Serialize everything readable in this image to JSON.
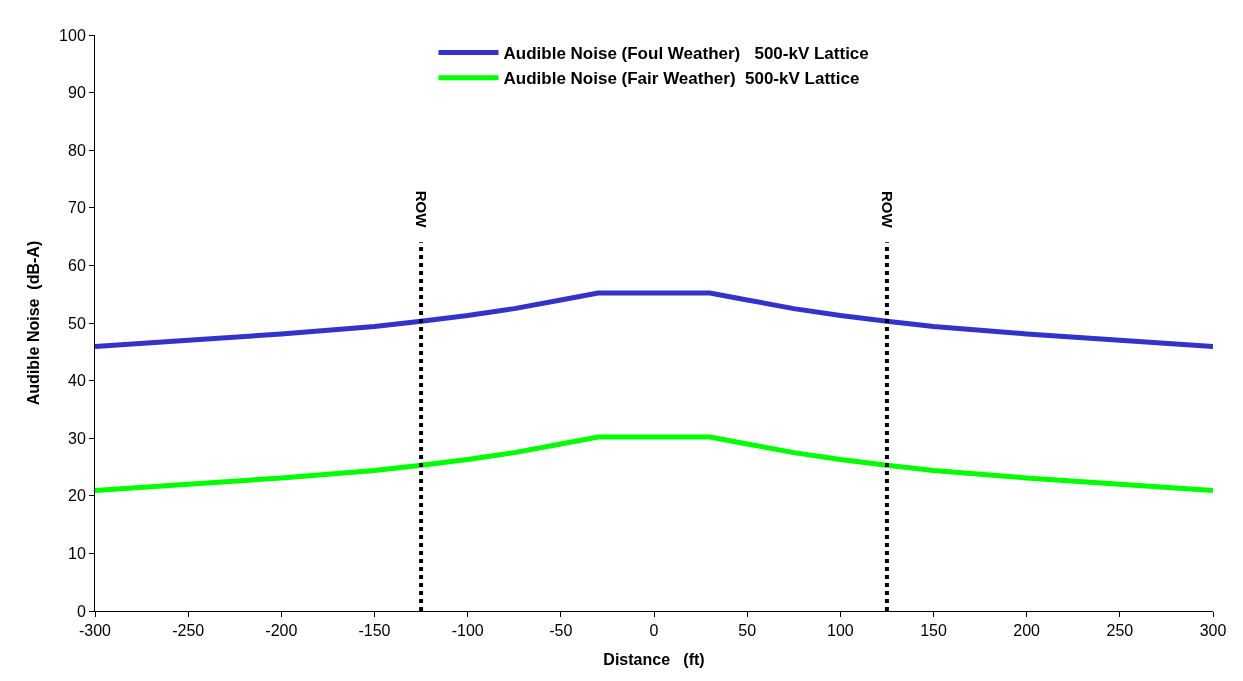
{
  "chart_data": {
    "type": "line",
    "xlabel": "Distance   (ft)",
    "ylabel": "Audible Noise  (dB-A)",
    "x": [
      -300,
      -250,
      -200,
      -150,
      -125,
      -100,
      -75,
      -50,
      -30,
      0,
      30,
      50,
      75,
      100,
      125,
      150,
      200,
      250,
      300
    ],
    "series": [
      {
        "name": "Audible Noise (Foul Weather)   500-kV Lattice",
        "color": "#3333cc",
        "values": [
          45.9,
          47.0,
          48.1,
          49.4,
          50.3,
          51.3,
          52.5,
          54.0,
          55.2,
          55.2,
          55.2,
          54.0,
          52.5,
          51.3,
          50.3,
          49.4,
          48.1,
          47.0,
          45.9
        ]
      },
      {
        "name": "Audible Noise (Fair Weather)  500-kV Lattice",
        "color": "#00ff00",
        "values": [
          20.9,
          22.0,
          23.1,
          24.4,
          25.3,
          26.3,
          27.5,
          29.0,
          30.2,
          30.2,
          30.2,
          29.0,
          27.5,
          26.3,
          25.3,
          24.4,
          23.1,
          22.0,
          20.9
        ]
      }
    ],
    "xlim": [
      -300,
      300
    ],
    "xticks": [
      -300,
      -250,
      -200,
      -150,
      -100,
      -50,
      0,
      50,
      100,
      150,
      200,
      250,
      300
    ],
    "ylim": [
      0,
      100
    ],
    "yticks": [
      0,
      10,
      20,
      30,
      40,
      50,
      60,
      70,
      80,
      90,
      100
    ],
    "ref_lines": [
      {
        "axis": "x",
        "value": -125,
        "label": "ROW",
        "color": "#000000",
        "line_style": "dotted"
      },
      {
        "axis": "x",
        "value": 125,
        "label": "ROW",
        "color": "#000000",
        "line_style": "dotted"
      }
    ],
    "legend": "top",
    "marker": "none",
    "line_style": "solid"
  }
}
